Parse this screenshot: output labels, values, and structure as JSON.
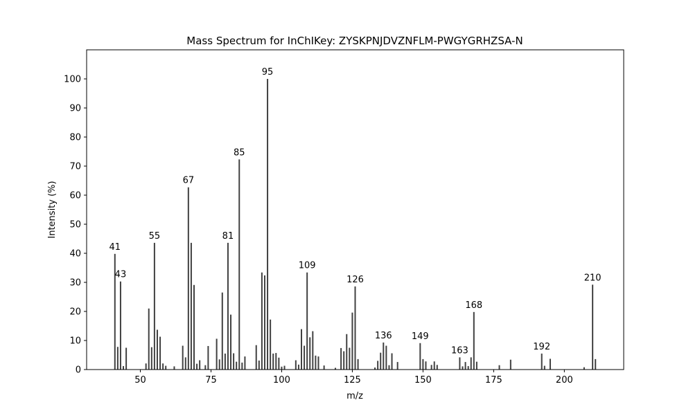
{
  "chart_data": {
    "type": "bar",
    "title": "Mass Spectrum for InChIKey: ZYSKPNJDVZNFLM-PWGYGRHZSA-N",
    "xlabel": "m/z",
    "ylabel": "Intensity (%)",
    "xlim": [
      31,
      221
    ],
    "ylim": [
      0,
      110
    ],
    "xticks": [
      50,
      75,
      100,
      125,
      150,
      175,
      200
    ],
    "yticks": [
      0,
      10,
      20,
      30,
      40,
      50,
      60,
      70,
      80,
      90,
      100
    ],
    "grid": false,
    "bar_color": "#404040",
    "peaks": [
      {
        "mz": 41,
        "intensity": 39.8,
        "label": "41"
      },
      {
        "mz": 42,
        "intensity": 7.8
      },
      {
        "mz": 43,
        "intensity": 30.3,
        "label": "43"
      },
      {
        "mz": 44,
        "intensity": 1.2
      },
      {
        "mz": 45,
        "intensity": 7.5
      },
      {
        "mz": 52,
        "intensity": 2.1
      },
      {
        "mz": 53,
        "intensity": 21.0
      },
      {
        "mz": 54,
        "intensity": 7.7
      },
      {
        "mz": 55,
        "intensity": 43.6,
        "label": "55"
      },
      {
        "mz": 56,
        "intensity": 13.7
      },
      {
        "mz": 57,
        "intensity": 11.3
      },
      {
        "mz": 58,
        "intensity": 2.1
      },
      {
        "mz": 59,
        "intensity": 1.3
      },
      {
        "mz": 62,
        "intensity": 1.1
      },
      {
        "mz": 65,
        "intensity": 8.2
      },
      {
        "mz": 66,
        "intensity": 4.2
      },
      {
        "mz": 67,
        "intensity": 62.7,
        "label": "67"
      },
      {
        "mz": 68,
        "intensity": 43.6
      },
      {
        "mz": 69,
        "intensity": 29.1
      },
      {
        "mz": 70,
        "intensity": 2.0
      },
      {
        "mz": 71,
        "intensity": 3.2
      },
      {
        "mz": 73,
        "intensity": 1.5
      },
      {
        "mz": 74,
        "intensity": 8.1
      },
      {
        "mz": 77,
        "intensity": 10.6
      },
      {
        "mz": 78,
        "intensity": 3.5
      },
      {
        "mz": 79,
        "intensity": 26.5
      },
      {
        "mz": 80,
        "intensity": 5.5
      },
      {
        "mz": 81,
        "intensity": 43.6,
        "label": "81"
      },
      {
        "mz": 82,
        "intensity": 18.9
      },
      {
        "mz": 83,
        "intensity": 5.6
      },
      {
        "mz": 84,
        "intensity": 2.7
      },
      {
        "mz": 85,
        "intensity": 72.3,
        "label": "85"
      },
      {
        "mz": 86,
        "intensity": 2.4
      },
      {
        "mz": 87,
        "intensity": 4.5
      },
      {
        "mz": 91,
        "intensity": 8.4
      },
      {
        "mz": 92,
        "intensity": 3.1
      },
      {
        "mz": 93,
        "intensity": 33.4
      },
      {
        "mz": 94,
        "intensity": 32.4
      },
      {
        "mz": 95,
        "intensity": 100.0,
        "label": "95"
      },
      {
        "mz": 96,
        "intensity": 17.2
      },
      {
        "mz": 97,
        "intensity": 5.5
      },
      {
        "mz": 98,
        "intensity": 5.7
      },
      {
        "mz": 99,
        "intensity": 4.1
      },
      {
        "mz": 100,
        "intensity": 1.0
      },
      {
        "mz": 101,
        "intensity": 1.3
      },
      {
        "mz": 105,
        "intensity": 3.2
      },
      {
        "mz": 106,
        "intensity": 1.7
      },
      {
        "mz": 107,
        "intensity": 13.9
      },
      {
        "mz": 108,
        "intensity": 8.2
      },
      {
        "mz": 109,
        "intensity": 33.4,
        "label": "109"
      },
      {
        "mz": 110,
        "intensity": 11.1
      },
      {
        "mz": 111,
        "intensity": 13.2
      },
      {
        "mz": 112,
        "intensity": 4.8
      },
      {
        "mz": 113,
        "intensity": 4.5
      },
      {
        "mz": 115,
        "intensity": 1.4
      },
      {
        "mz": 119,
        "intensity": 0.6
      },
      {
        "mz": 121,
        "intensity": 7.4
      },
      {
        "mz": 122,
        "intensity": 6.3
      },
      {
        "mz": 123,
        "intensity": 12.2
      },
      {
        "mz": 124,
        "intensity": 7.5
      },
      {
        "mz": 125,
        "intensity": 19.6
      },
      {
        "mz": 126,
        "intensity": 28.6,
        "label": "126"
      },
      {
        "mz": 127,
        "intensity": 3.6
      },
      {
        "mz": 133,
        "intensity": 0.7
      },
      {
        "mz": 134,
        "intensity": 3.0
      },
      {
        "mz": 135,
        "intensity": 5.8
      },
      {
        "mz": 136,
        "intensity": 9.3,
        "label": "136"
      },
      {
        "mz": 137,
        "intensity": 8.2
      },
      {
        "mz": 138,
        "intensity": 1.5
      },
      {
        "mz": 139,
        "intensity": 5.6
      },
      {
        "mz": 141,
        "intensity": 2.6
      },
      {
        "mz": 149,
        "intensity": 9.1,
        "label": "149"
      },
      {
        "mz": 150,
        "intensity": 3.6
      },
      {
        "mz": 151,
        "intensity": 2.8
      },
      {
        "mz": 153,
        "intensity": 1.6
      },
      {
        "mz": 154,
        "intensity": 2.8
      },
      {
        "mz": 155,
        "intensity": 1.6
      },
      {
        "mz": 163,
        "intensity": 4.2,
        "label": "163"
      },
      {
        "mz": 164,
        "intensity": 1.1
      },
      {
        "mz": 165,
        "intensity": 2.6
      },
      {
        "mz": 166,
        "intensity": 1.2
      },
      {
        "mz": 167,
        "intensity": 4.2
      },
      {
        "mz": 168,
        "intensity": 19.8,
        "label": "168"
      },
      {
        "mz": 169,
        "intensity": 2.7
      },
      {
        "mz": 177,
        "intensity": 1.5
      },
      {
        "mz": 181,
        "intensity": 3.4
      },
      {
        "mz": 192,
        "intensity": 5.5,
        "label": "192"
      },
      {
        "mz": 193,
        "intensity": 1.3
      },
      {
        "mz": 195,
        "intensity": 3.7
      },
      {
        "mz": 207,
        "intensity": 0.8
      },
      {
        "mz": 210,
        "intensity": 29.2,
        "label": "210"
      },
      {
        "mz": 211,
        "intensity": 3.6
      }
    ]
  }
}
